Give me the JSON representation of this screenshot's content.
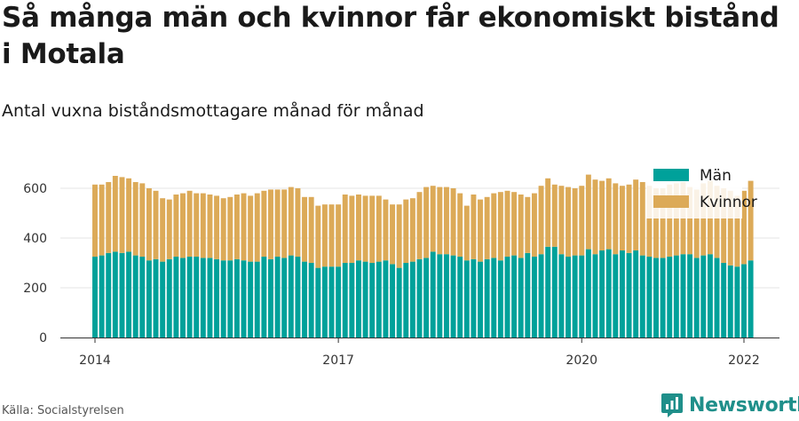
{
  "header": {
    "title": "Så många män och kvinnor får ekonomiskt bistånd i Motala",
    "subtitle": "Antal vuxna biståndsmottagare månad för månad"
  },
  "footer": {
    "source": "Källa: Socialstyrelsen",
    "brand": "Newsworthy",
    "brand_icon": "newsworthy-logo-icon"
  },
  "colors": {
    "men": "#00a19a",
    "women": "#dcaa58",
    "grid": "#e6e6e6",
    "axis": "#333333",
    "brand": "#1f8f8a"
  },
  "chart_data": {
    "type": "bar",
    "stacked": true,
    "x_start": "2014-01",
    "x_end": "2022-01",
    "xticks": [
      "2014",
      "2017",
      "2020",
      "2022"
    ],
    "ylim": [
      0,
      700
    ],
    "yticks": [
      "0",
      "200",
      "400",
      "600"
    ],
    "grid": true,
    "legend_position": "top-right",
    "series": [
      {
        "name": "Män",
        "color": "#00a19a",
        "values": [
          325,
          330,
          340,
          345,
          340,
          345,
          330,
          325,
          310,
          315,
          305,
          315,
          325,
          320,
          325,
          325,
          320,
          320,
          315,
          310,
          310,
          315,
          310,
          305,
          305,
          325,
          315,
          325,
          320,
          330,
          325,
          305,
          300,
          280,
          285,
          285,
          285,
          300,
          300,
          310,
          305,
          300,
          305,
          310,
          295,
          280,
          300,
          305,
          315,
          320,
          345,
          335,
          335,
          330,
          325,
          310,
          315,
          305,
          315,
          320,
          310,
          325,
          330,
          320,
          340,
          325,
          335,
          365,
          365,
          335,
          325,
          330,
          330,
          355,
          335,
          350,
          355,
          335,
          350,
          340,
          350,
          330,
          325,
          320,
          320,
          325,
          330,
          335,
          335,
          320,
          330,
          335,
          320,
          300,
          290,
          285,
          295,
          310
        ]
      },
      {
        "name": "Kvinnor",
        "color": "#dcaa58",
        "values": [
          290,
          285,
          285,
          305,
          305,
          295,
          295,
          295,
          290,
          275,
          255,
          240,
          250,
          260,
          265,
          255,
          260,
          255,
          255,
          250,
          255,
          260,
          270,
          265,
          275,
          265,
          280,
          270,
          275,
          275,
          275,
          260,
          265,
          250,
          250,
          250,
          250,
          275,
          270,
          265,
          265,
          270,
          265,
          245,
          240,
          255,
          255,
          255,
          270,
          285,
          265,
          270,
          270,
          270,
          255,
          220,
          260,
          250,
          250,
          260,
          275,
          265,
          255,
          255,
          225,
          255,
          275,
          275,
          250,
          275,
          280,
          270,
          280,
          300,
          300,
          280,
          285,
          285,
          260,
          275,
          285,
          295,
          285,
          280,
          280,
          290,
          290,
          290,
          270,
          275,
          290,
          295,
          290,
          300,
          300,
          285,
          295,
          320
        ]
      }
    ]
  }
}
